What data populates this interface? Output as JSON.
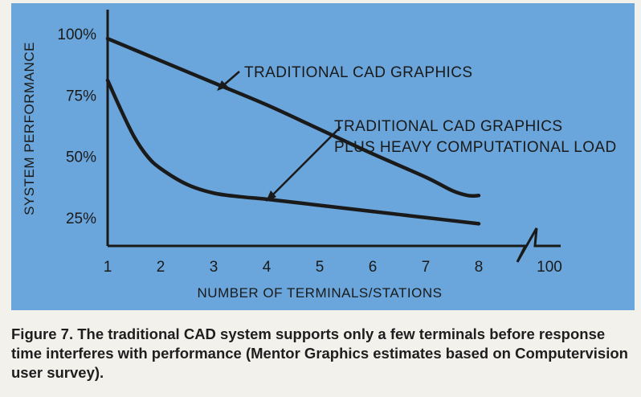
{
  "caption": "Figure 7. The traditional CAD system supports only a few terminals before response time interferes with performance (Mentor Graphics estimates based on Computervision user survey).",
  "colors": {
    "panel": "#6aa6db",
    "ink": "#1a1a1a",
    "page": "#f3f1ec"
  },
  "chart_data": {
    "type": "line",
    "title": "",
    "xlabel": "NUMBER OF TERMINALS/STATIONS",
    "ylabel": "SYSTEM PERFORMANCE",
    "x_ticks": [
      "1",
      "2",
      "3",
      "4",
      "5",
      "6",
      "7",
      "8",
      "100"
    ],
    "y_ticks": [
      "100%",
      "75%",
      "50%",
      "25%"
    ],
    "y_tick_values": [
      100,
      75,
      50,
      25
    ],
    "ylim": [
      15,
      100
    ],
    "xlim": [
      1,
      8.5
    ],
    "axis_break": "between 8 and 100",
    "grid": false,
    "legend": "none",
    "series": [
      {
        "label": "TRADITIONAL CAD GRAPHICS",
        "x": [
          1,
          2,
          3,
          4,
          5,
          6,
          7,
          7.5,
          7.8,
          8
        ],
        "y": [
          98,
          89,
          80,
          71,
          61,
          51,
          41.5,
          36,
          34,
          34
        ]
      },
      {
        "label": "TRADITIONAL CAD GRAPHICS PLUS HEAVY COMPUTATIONAL LOAD",
        "x": [
          1,
          1.25,
          1.5,
          1.75,
          2,
          2.5,
          3,
          3.5,
          4,
          5,
          6,
          7,
          8
        ],
        "y": [
          81,
          69,
          58,
          50,
          45,
          38.5,
          35,
          33.5,
          32.5,
          30,
          27.5,
          25,
          22.5
        ]
      }
    ],
    "annotations": [
      {
        "lines": [
          "TRADITIONAL CAD GRAPHICS"
        ],
        "points_to_series": 0
      },
      {
        "lines": [
          "TRADITIONAL CAD GRAPHICS",
          "PLUS HEAVY COMPUTATIONAL LOAD"
        ],
        "points_to_series": 1
      }
    ]
  }
}
